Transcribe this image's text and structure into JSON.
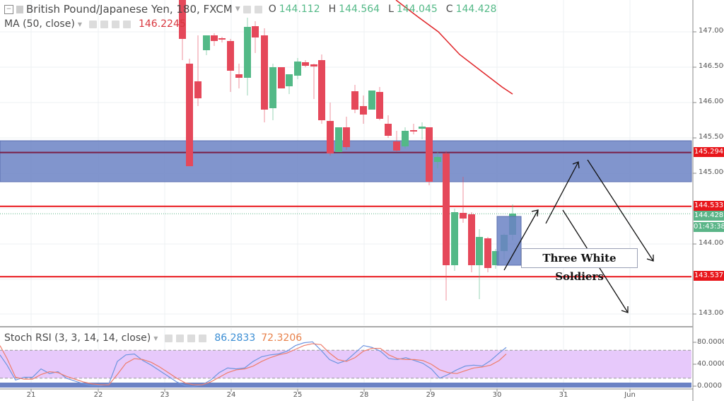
{
  "header": {
    "symbol": "British Pound/Japanese Yen, 180, FXCM",
    "open_label": "O",
    "open": "144.112",
    "high_label": "H",
    "high": "144.564",
    "low_label": "L",
    "low": "144.045",
    "close_label": "C",
    "close": "144.428"
  },
  "ma_legend": {
    "label": "MA (50, close)",
    "value": "146.2245"
  },
  "stoch_legend": {
    "label": "Stoch RSI (3, 3, 14, 14, close)",
    "k": "86.2833",
    "d": "72.3206"
  },
  "price_axis": {
    "ticks": [
      "147.000",
      "146.500",
      "146.000",
      "145.500",
      "145.000",
      "144.000",
      "143.000"
    ],
    "tags": {
      "resistance": "145.294",
      "level_upper": "144.533",
      "last_price": "144.428",
      "countdown": "01:43:38",
      "level_lower": "143.537"
    }
  },
  "stoch_axis": {
    "ticks": [
      "80.0000",
      "40.0000",
      "0.0000"
    ]
  },
  "time_axis": {
    "labels": [
      "21",
      "22",
      "23",
      "24",
      "25",
      "28",
      "29",
      "30",
      "31",
      "Jun"
    ]
  },
  "annotation": {
    "text": "Three White Soldiers"
  },
  "colors": {
    "up": "#53b987",
    "down": "#e5485a",
    "ma": "#e0262a",
    "zone": "#6b82c4",
    "level": "#e8161b",
    "stoch_k": "#6e95e0",
    "stoch_d": "#ee7d6c",
    "stoch_band": "#e7c9fb"
  },
  "chart_data": {
    "type": "candlestick",
    "title": "British Pound/Japanese Yen, 180, FXCM",
    "timeframe": "180",
    "ylim": [
      142.5,
      147.45
    ],
    "x_labels": [
      "21",
      "22",
      "23",
      "24",
      "25",
      "28",
      "29",
      "30",
      "31",
      "Jun"
    ],
    "candles": [
      {
        "x": 258,
        "o": 147.6,
        "h": 147.7,
        "c": 146.9,
        "l": 146.6
      },
      {
        "x": 268,
        "o": 146.55,
        "h": 146.62,
        "c": 145.1,
        "l": 146.05
      },
      {
        "x": 280,
        "o": 146.3,
        "h": 146.95,
        "c": 146.06,
        "l": 145.95
      },
      {
        "x": 292,
        "o": 146.74,
        "h": 146.94,
        "c": 146.95,
        "l": 146.67
      },
      {
        "x": 303,
        "o": 146.95,
        "h": 146.98,
        "c": 146.87,
        "l": 146.8
      },
      {
        "x": 314,
        "o": 146.91,
        "h": 146.93,
        "c": 146.89,
        "l": 146.85
      },
      {
        "x": 326,
        "o": 146.87,
        "h": 146.9,
        "c": 146.45,
        "l": 146.15
      },
      {
        "x": 338,
        "o": 146.4,
        "h": 146.55,
        "c": 146.35,
        "l": 146.2
      },
      {
        "x": 350,
        "o": 146.35,
        "h": 147.2,
        "c": 147.07,
        "l": 146.1
      },
      {
        "x": 361,
        "o": 147.08,
        "h": 147.15,
        "c": 146.92,
        "l": 146.7
      },
      {
        "x": 374,
        "o": 146.95,
        "h": 147.05,
        "c": 145.9,
        "l": 145.72
      },
      {
        "x": 386,
        "o": 145.92,
        "h": 146.55,
        "c": 146.5,
        "l": 145.75
      },
      {
        "x": 398,
        "o": 146.5,
        "h": 146.5,
        "c": 146.2,
        "l": 146.2
      },
      {
        "x": 409,
        "o": 146.23,
        "h": 146.3,
        "c": 146.4,
        "l": 146.12
      },
      {
        "x": 421,
        "o": 146.38,
        "h": 146.63,
        "c": 146.58,
        "l": 146.33
      },
      {
        "x": 432,
        "o": 146.57,
        "h": 146.6,
        "c": 146.52,
        "l": 146.5
      },
      {
        "x": 444,
        "o": 146.54,
        "h": 146.55,
        "c": 146.51,
        "l": 146.05
      },
      {
        "x": 455,
        "o": 146.6,
        "h": 146.68,
        "c": 145.75,
        "l": 145.7
      },
      {
        "x": 467,
        "o": 145.74,
        "h": 146.0,
        "c": 145.28,
        "l": 145.25
      },
      {
        "x": 479,
        "o": 145.3,
        "h": 145.65,
        "c": 145.65,
        "l": 145.55
      },
      {
        "x": 490,
        "o": 145.65,
        "h": 145.8,
        "c": 145.37,
        "l": 145.33
      },
      {
        "x": 502,
        "o": 146.16,
        "h": 146.25,
        "c": 145.9,
        "l": 145.85
      },
      {
        "x": 514,
        "o": 145.95,
        "h": 146.1,
        "c": 145.83,
        "l": 145.7
      },
      {
        "x": 526,
        "o": 145.9,
        "h": 146.17,
        "c": 146.17,
        "l": 146.1
      },
      {
        "x": 537,
        "o": 146.15,
        "h": 146.22,
        "c": 145.77,
        "l": 145.75
      },
      {
        "x": 549,
        "o": 145.7,
        "h": 145.82,
        "c": 145.53,
        "l": 145.5
      },
      {
        "x": 561,
        "o": 145.45,
        "h": 145.6,
        "c": 145.32,
        "l": 145.3
      },
      {
        "x": 573,
        "o": 145.38,
        "h": 145.65,
        "c": 145.6,
        "l": 145.35
      },
      {
        "x": 585,
        "o": 145.61,
        "h": 145.7,
        "c": 145.59,
        "l": 145.55
      },
      {
        "x": 597,
        "o": 145.63,
        "h": 145.72,
        "c": 145.66,
        "l": 145.48
      },
      {
        "x": 607,
        "o": 145.65,
        "h": 145.65,
        "c": 144.88,
        "l": 144.83
      },
      {
        "x": 619,
        "o": 145.16,
        "h": 145.3,
        "c": 145.23,
        "l": 145.07
      },
      {
        "x": 631,
        "o": 145.28,
        "h": 145.32,
        "c": 143.7,
        "l": 143.2
      },
      {
        "x": 643,
        "o": 143.7,
        "h": 144.5,
        "c": 144.45,
        "l": 143.62
      },
      {
        "x": 655,
        "o": 144.44,
        "h": 144.95,
        "c": 144.36,
        "l": 144.3
      },
      {
        "x": 667,
        "o": 144.42,
        "h": 144.45,
        "c": 143.7,
        "l": 143.6
      },
      {
        "x": 678,
        "o": 143.7,
        "h": 144.21,
        "c": 144.1,
        "l": 143.22
      },
      {
        "x": 690,
        "o": 144.08,
        "h": 144.1,
        "c": 143.66,
        "l": 143.6
      },
      {
        "x": 701,
        "o": 143.7,
        "h": 143.93,
        "c": 143.9,
        "l": 143.65
      },
      {
        "x": 713,
        "o": 143.9,
        "h": 144.15,
        "c": 144.13,
        "l": 143.78
      },
      {
        "x": 725,
        "o": 144.13,
        "h": 144.56,
        "c": 144.43,
        "l": 144.05
      }
    ],
    "ma50": [
      [
        560,
        147.45
      ],
      [
        590,
        147.22
      ],
      [
        620,
        147.0
      ],
      [
        650,
        146.68
      ],
      [
        680,
        146.45
      ],
      [
        710,
        146.22
      ],
      [
        725,
        146.12
      ]
    ],
    "horizontal_levels": [
      145.294,
      144.533,
      143.537
    ],
    "zone": [
      144.88,
      145.46
    ],
    "stoch_rsi": {
      "ylim": [
        0,
        100
      ],
      "bands": [
        20,
        80
      ],
      "k": [
        [
          0,
          70
        ],
        [
          10,
          48
        ],
        [
          22,
          16
        ],
        [
          34,
          22
        ],
        [
          46,
          22
        ],
        [
          58,
          40
        ],
        [
          70,
          30
        ],
        [
          82,
          34
        ],
        [
          94,
          20
        ],
        [
          106,
          14
        ],
        [
          118,
          8
        ],
        [
          130,
          4
        ],
        [
          142,
          4
        ],
        [
          154,
          8
        ],
        [
          166,
          56
        ],
        [
          178,
          70
        ],
        [
          190,
          72
        ],
        [
          202,
          58
        ],
        [
          214,
          48
        ],
        [
          226,
          36
        ],
        [
          238,
          24
        ],
        [
          250,
          12
        ],
        [
          262,
          4
        ],
        [
          274,
          2
        ],
        [
          286,
          6
        ],
        [
          298,
          16
        ],
        [
          310,
          32
        ],
        [
          322,
          42
        ],
        [
          334,
          40
        ],
        [
          346,
          42
        ],
        [
          358,
          56
        ],
        [
          370,
          66
        ],
        [
          382,
          70
        ],
        [
          394,
          72
        ],
        [
          406,
          78
        ],
        [
          418,
          90
        ],
        [
          430,
          96
        ],
        [
          442,
          98
        ],
        [
          454,
          80
        ],
        [
          466,
          60
        ],
        [
          478,
          52
        ],
        [
          490,
          58
        ],
        [
          502,
          74
        ],
        [
          514,
          90
        ],
        [
          526,
          86
        ],
        [
          538,
          78
        ],
        [
          550,
          62
        ],
        [
          562,
          60
        ],
        [
          574,
          64
        ],
        [
          586,
          58
        ],
        [
          598,
          52
        ],
        [
          610,
          40
        ],
        [
          622,
          20
        ],
        [
          634,
          28
        ],
        [
          646,
          38
        ],
        [
          658,
          46
        ],
        [
          670,
          48
        ],
        [
          682,
          46
        ],
        [
          694,
          58
        ],
        [
          706,
          74
        ],
        [
          716,
          86
        ]
      ],
      "d": [
        [
          0,
          90
        ],
        [
          10,
          62
        ],
        [
          22,
          22
        ],
        [
          34,
          18
        ],
        [
          46,
          18
        ],
        [
          58,
          28
        ],
        [
          70,
          34
        ],
        [
          82,
          32
        ],
        [
          94,
          24
        ],
        [
          106,
          18
        ],
        [
          118,
          12
        ],
        [
          130,
          8
        ],
        [
          142,
          6
        ],
        [
          154,
          6
        ],
        [
          166,
          28
        ],
        [
          178,
          52
        ],
        [
          190,
          62
        ],
        [
          202,
          60
        ],
        [
          214,
          54
        ],
        [
          226,
          44
        ],
        [
          238,
          32
        ],
        [
          250,
          20
        ],
        [
          262,
          10
        ],
        [
          274,
          6
        ],
        [
          286,
          6
        ],
        [
          298,
          12
        ],
        [
          310,
          22
        ],
        [
          322,
          32
        ],
        [
          334,
          38
        ],
        [
          346,
          40
        ],
        [
          358,
          46
        ],
        [
          370,
          56
        ],
        [
          382,
          64
        ],
        [
          394,
          70
        ],
        [
          406,
          74
        ],
        [
          418,
          82
        ],
        [
          430,
          90
        ],
        [
          442,
          94
        ],
        [
          454,
          92
        ],
        [
          466,
          74
        ],
        [
          478,
          60
        ],
        [
          490,
          56
        ],
        [
          502,
          64
        ],
        [
          514,
          78
        ],
        [
          526,
          84
        ],
        [
          538,
          84
        ],
        [
          550,
          70
        ],
        [
          562,
          62
        ],
        [
          574,
          60
        ],
        [
          586,
          60
        ],
        [
          598,
          58
        ],
        [
          610,
          50
        ],
        [
          622,
          38
        ],
        [
          634,
          32
        ],
        [
          646,
          30
        ],
        [
          658,
          36
        ],
        [
          670,
          42
        ],
        [
          682,
          44
        ],
        [
          694,
          48
        ],
        [
          706,
          58
        ],
        [
          716,
          72
        ]
      ]
    }
  }
}
